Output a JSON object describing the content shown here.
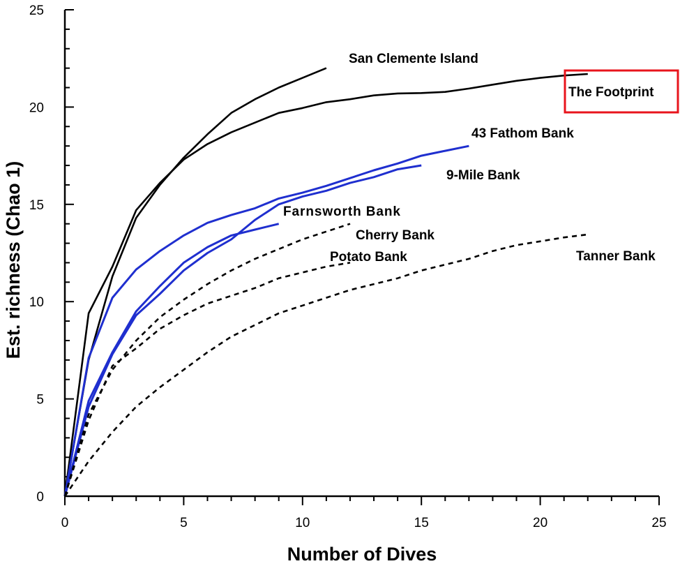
{
  "chart_data": {
    "type": "line",
    "title": "",
    "xlabel": "Number of Dives",
    "ylabel": "Est. richness (Chao 1)",
    "xlim": [
      0,
      25
    ],
    "ylim": [
      0,
      25
    ],
    "x_ticks": [
      0,
      5,
      10,
      15,
      20,
      25
    ],
    "y_ticks": [
      0,
      5,
      10,
      15,
      20,
      25
    ],
    "grid": false,
    "legend": "none (series labeled directly on plot)",
    "series": [
      {
        "name": "San Clemente Island",
        "color": "#000000",
        "style": "solid",
        "x": [
          0,
          1,
          2,
          3,
          4,
          5,
          6,
          7,
          8,
          9,
          10,
          11
        ],
        "y": [
          0,
          7.0,
          11.3,
          14.3,
          16.0,
          17.4,
          18.6,
          19.7,
          20.4,
          21.0,
          21.5,
          22.0
        ]
      },
      {
        "name": "The Footprint",
        "color": "#000000",
        "style": "solid",
        "highlight": true,
        "highlight_color": "#e8141c",
        "x": [
          0,
          1,
          2,
          3,
          4,
          5,
          6,
          7,
          8,
          9,
          10,
          11,
          12,
          13,
          14,
          15,
          16,
          17,
          18,
          19,
          20,
          21,
          22
        ],
        "y": [
          0,
          9.4,
          11.8,
          14.7,
          16.1,
          17.3,
          18.1,
          18.7,
          19.2,
          19.7,
          19.95,
          20.25,
          20.4,
          20.6,
          20.7,
          20.72,
          20.78,
          20.95,
          21.15,
          21.35,
          21.5,
          21.62,
          21.7
        ]
      },
      {
        "name": "43 Fathom Bank",
        "color": "#1f2fcf",
        "style": "solid",
        "x": [
          0,
          1,
          2,
          3,
          4,
          5,
          6,
          7,
          8,
          9,
          10,
          11,
          12,
          13,
          14,
          15,
          16,
          17
        ],
        "y": [
          0,
          7.1,
          10.2,
          11.65,
          12.6,
          13.4,
          14.05,
          14.45,
          14.8,
          15.3,
          15.6,
          15.95,
          16.35,
          16.75,
          17.1,
          17.5,
          17.75,
          18.0
        ]
      },
      {
        "name": "9-Mile Bank",
        "color": "#1f2fcf",
        "style": "solid",
        "x": [
          0,
          1,
          2,
          3,
          4,
          5,
          6,
          7,
          8,
          9,
          10,
          11,
          12,
          13,
          14,
          15
        ],
        "y": [
          0,
          4.6,
          7.3,
          9.3,
          10.4,
          11.6,
          12.5,
          13.2,
          14.2,
          15.0,
          15.4,
          15.7,
          16.1,
          16.4,
          16.8,
          17.0
        ]
      },
      {
        "name": "Farnsworth Bank",
        "color": "#1f2fcf",
        "style": "solid",
        "x": [
          0,
          1,
          2,
          3,
          4,
          5,
          6,
          7,
          8,
          9
        ],
        "y": [
          0,
          4.9,
          7.4,
          9.5,
          10.8,
          12.0,
          12.8,
          13.4,
          13.7,
          14.0
        ]
      },
      {
        "name": "Cherry Bank",
        "color": "#000000",
        "style": "dashed",
        "x": [
          0,
          1,
          2,
          3,
          4,
          5,
          6,
          7,
          8,
          9,
          10,
          11,
          12
        ],
        "y": [
          0,
          4.2,
          6.5,
          8.0,
          9.2,
          10.1,
          10.9,
          11.6,
          12.2,
          12.7,
          13.2,
          13.6,
          14.0
        ]
      },
      {
        "name": "Potato Bank",
        "color": "#000000",
        "style": "dashed",
        "x": [
          0,
          1,
          2,
          3,
          4,
          5,
          6,
          7,
          8,
          9,
          10,
          11,
          12
        ],
        "y": [
          0,
          3.9,
          6.7,
          7.6,
          8.6,
          9.3,
          9.9,
          10.3,
          10.7,
          11.2,
          11.5,
          11.8,
          12.0
        ]
      },
      {
        "name": "Tanner Bank",
        "color": "#000000",
        "style": "dashed",
        "x": [
          0,
          1,
          2,
          3,
          4,
          5,
          6,
          7,
          8,
          9,
          10,
          11,
          12,
          13,
          14,
          15,
          16,
          17,
          18,
          19,
          20,
          21,
          22
        ],
        "y": [
          0,
          1.8,
          3.3,
          4.6,
          5.6,
          6.5,
          7.4,
          8.2,
          8.8,
          9.4,
          9.8,
          10.2,
          10.6,
          10.9,
          11.2,
          11.6,
          11.9,
          12.2,
          12.6,
          12.9,
          13.1,
          13.3,
          13.45
        ]
      }
    ]
  }
}
